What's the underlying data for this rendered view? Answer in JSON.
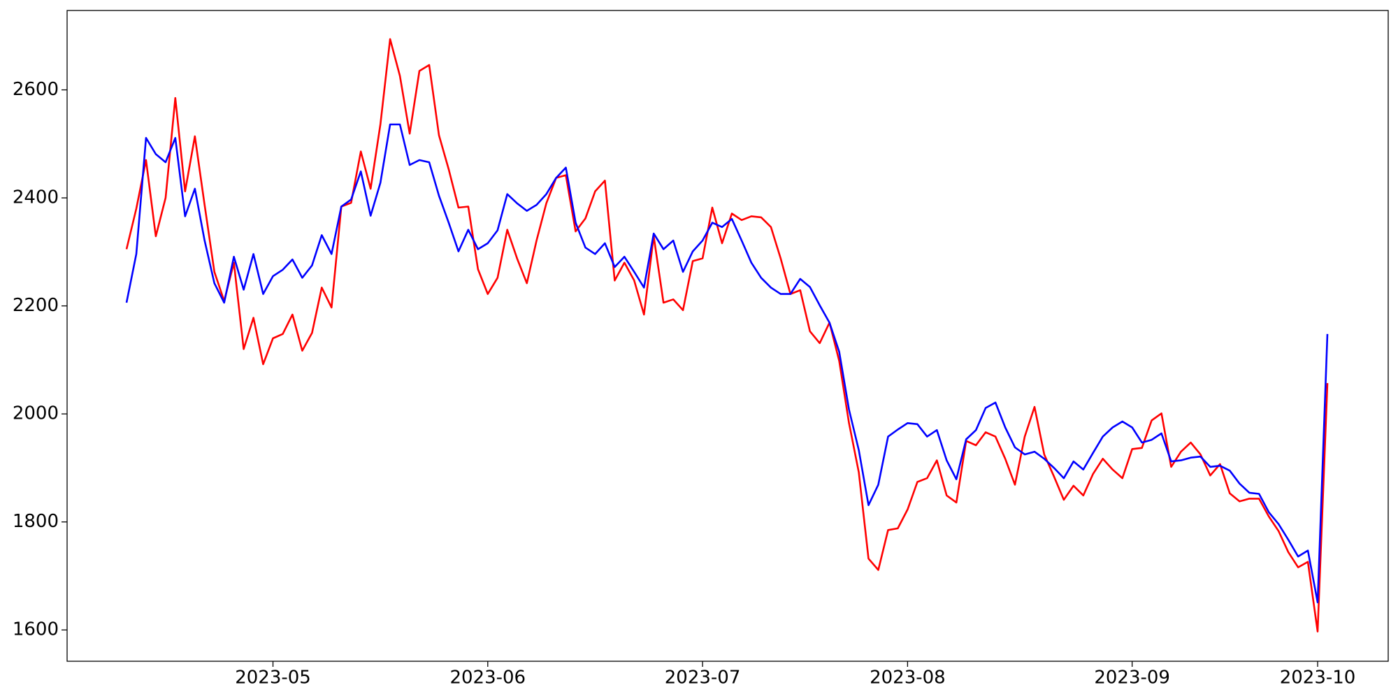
{
  "chart_data": {
    "type": "line",
    "categories": [
      null,
      null,
      null,
      null,
      null,
      null,
      null,
      null,
      null,
      null,
      null,
      null,
      null,
      null,
      null,
      "2023-05",
      null,
      null,
      null,
      null,
      null,
      null,
      null,
      null,
      null,
      null,
      null,
      null,
      null,
      null,
      null,
      null,
      null,
      null,
      null,
      null,
      null,
      "2023-06",
      null,
      null,
      null,
      null,
      null,
      null,
      null,
      null,
      null,
      null,
      null,
      null,
      null,
      null,
      null,
      null,
      null,
      null,
      null,
      null,
      null,
      "2023-07",
      null,
      null,
      null,
      null,
      null,
      null,
      null,
      null,
      null,
      null,
      null,
      null,
      null,
      null,
      null,
      null,
      null,
      null,
      null,
      null,
      "2023-08",
      null,
      null,
      null,
      null,
      null,
      null,
      null,
      null,
      null,
      null,
      null,
      null,
      null,
      null,
      null,
      null,
      null,
      null,
      null,
      null,
      null,
      null,
      "2023-09",
      null,
      null,
      null,
      null,
      null,
      null,
      null,
      null,
      null,
      null,
      null,
      null,
      null,
      null,
      null,
      null,
      null,
      null,
      "2023-10",
      null
    ],
    "series": [
      {
        "color": "#ff0000",
        "values": [
          2305,
          2380,
          2470,
          2329,
          2400,
          2585,
          2412,
          2514,
          2387,
          2263,
          2209,
          2280,
          2120,
          2178,
          2092,
          2140,
          2148,
          2184,
          2117,
          2150,
          2234,
          2197,
          2384,
          2391,
          2486,
          2417,
          2536,
          2694,
          2626,
          2519,
          2635,
          2646,
          2516,
          2453,
          2382,
          2384,
          2268,
          2222,
          2252,
          2341,
          2288,
          2242,
          2321,
          2390,
          2437,
          2442,
          2338,
          2362,
          2412,
          2432,
          2247,
          2280,
          2247,
          2184,
          2329,
          2206,
          2212,
          2192,
          2283,
          2288,
          2382,
          2316,
          2371,
          2359,
          2366,
          2364,
          2346,
          2288,
          2222,
          2229,
          2153,
          2131,
          2169,
          2098,
          1983,
          1892,
          1732,
          1711,
          1785,
          1788,
          1823,
          1874,
          1881,
          1914,
          1849,
          1836,
          1950,
          1942,
          1966,
          1958,
          1917,
          1869,
          1958,
          2013,
          1925,
          1884,
          1841,
          1867,
          1849,
          1889,
          1917,
          1897,
          1881,
          1935,
          1937,
          1988,
          2001,
          1902,
          1930,
          1947,
          1925,
          1886,
          1907,
          1853,
          1838,
          1843,
          1843,
          1810,
          1783,
          1744,
          1716,
          1726,
          1597,
          2057
        ]
      },
      {
        "color": "#0000ff",
        "values": [
          2206,
          2296,
          2511,
          2481,
          2466,
          2511,
          2366,
          2417,
          2321,
          2242,
          2206,
          2291,
          2230,
          2296,
          2222,
          2255,
          2267,
          2286,
          2252,
          2275,
          2331,
          2296,
          2384,
          2397,
          2449,
          2367,
          2428,
          2536,
          2536,
          2461,
          2470,
          2466,
          2404,
          2354,
          2301,
          2341,
          2305,
          2316,
          2340,
          2407,
          2390,
          2376,
          2387,
          2407,
          2437,
          2456,
          2354,
          2308,
          2296,
          2316,
          2272,
          2291,
          2263,
          2234,
          2334,
          2305,
          2321,
          2263,
          2301,
          2321,
          2354,
          2346,
          2361,
          2321,
          2280,
          2252,
          2234,
          2222,
          2222,
          2250,
          2235,
          2201,
          2169,
          2115,
          2008,
          1933,
          1831,
          1869,
          1958,
          1971,
          1983,
          1981,
          1958,
          1970,
          1914,
          1879,
          1953,
          1970,
          2011,
          2021,
          1975,
          1938,
          1925,
          1930,
          1917,
          1900,
          1881,
          1912,
          1897,
          1928,
          1958,
          1975,
          1986,
          1975,
          1947,
          1952,
          1964,
          1912,
          1914,
          1919,
          1921,
          1902,
          1904,
          1895,
          1871,
          1854,
          1852,
          1818,
          1796,
          1767,
          1736,
          1747,
          1651,
          2148
        ]
      }
    ],
    "ylim": [
      1542,
      2747
    ],
    "yticks": [
      1600,
      1800,
      2000,
      2200,
      2400,
      2600
    ],
    "grid": false
  }
}
